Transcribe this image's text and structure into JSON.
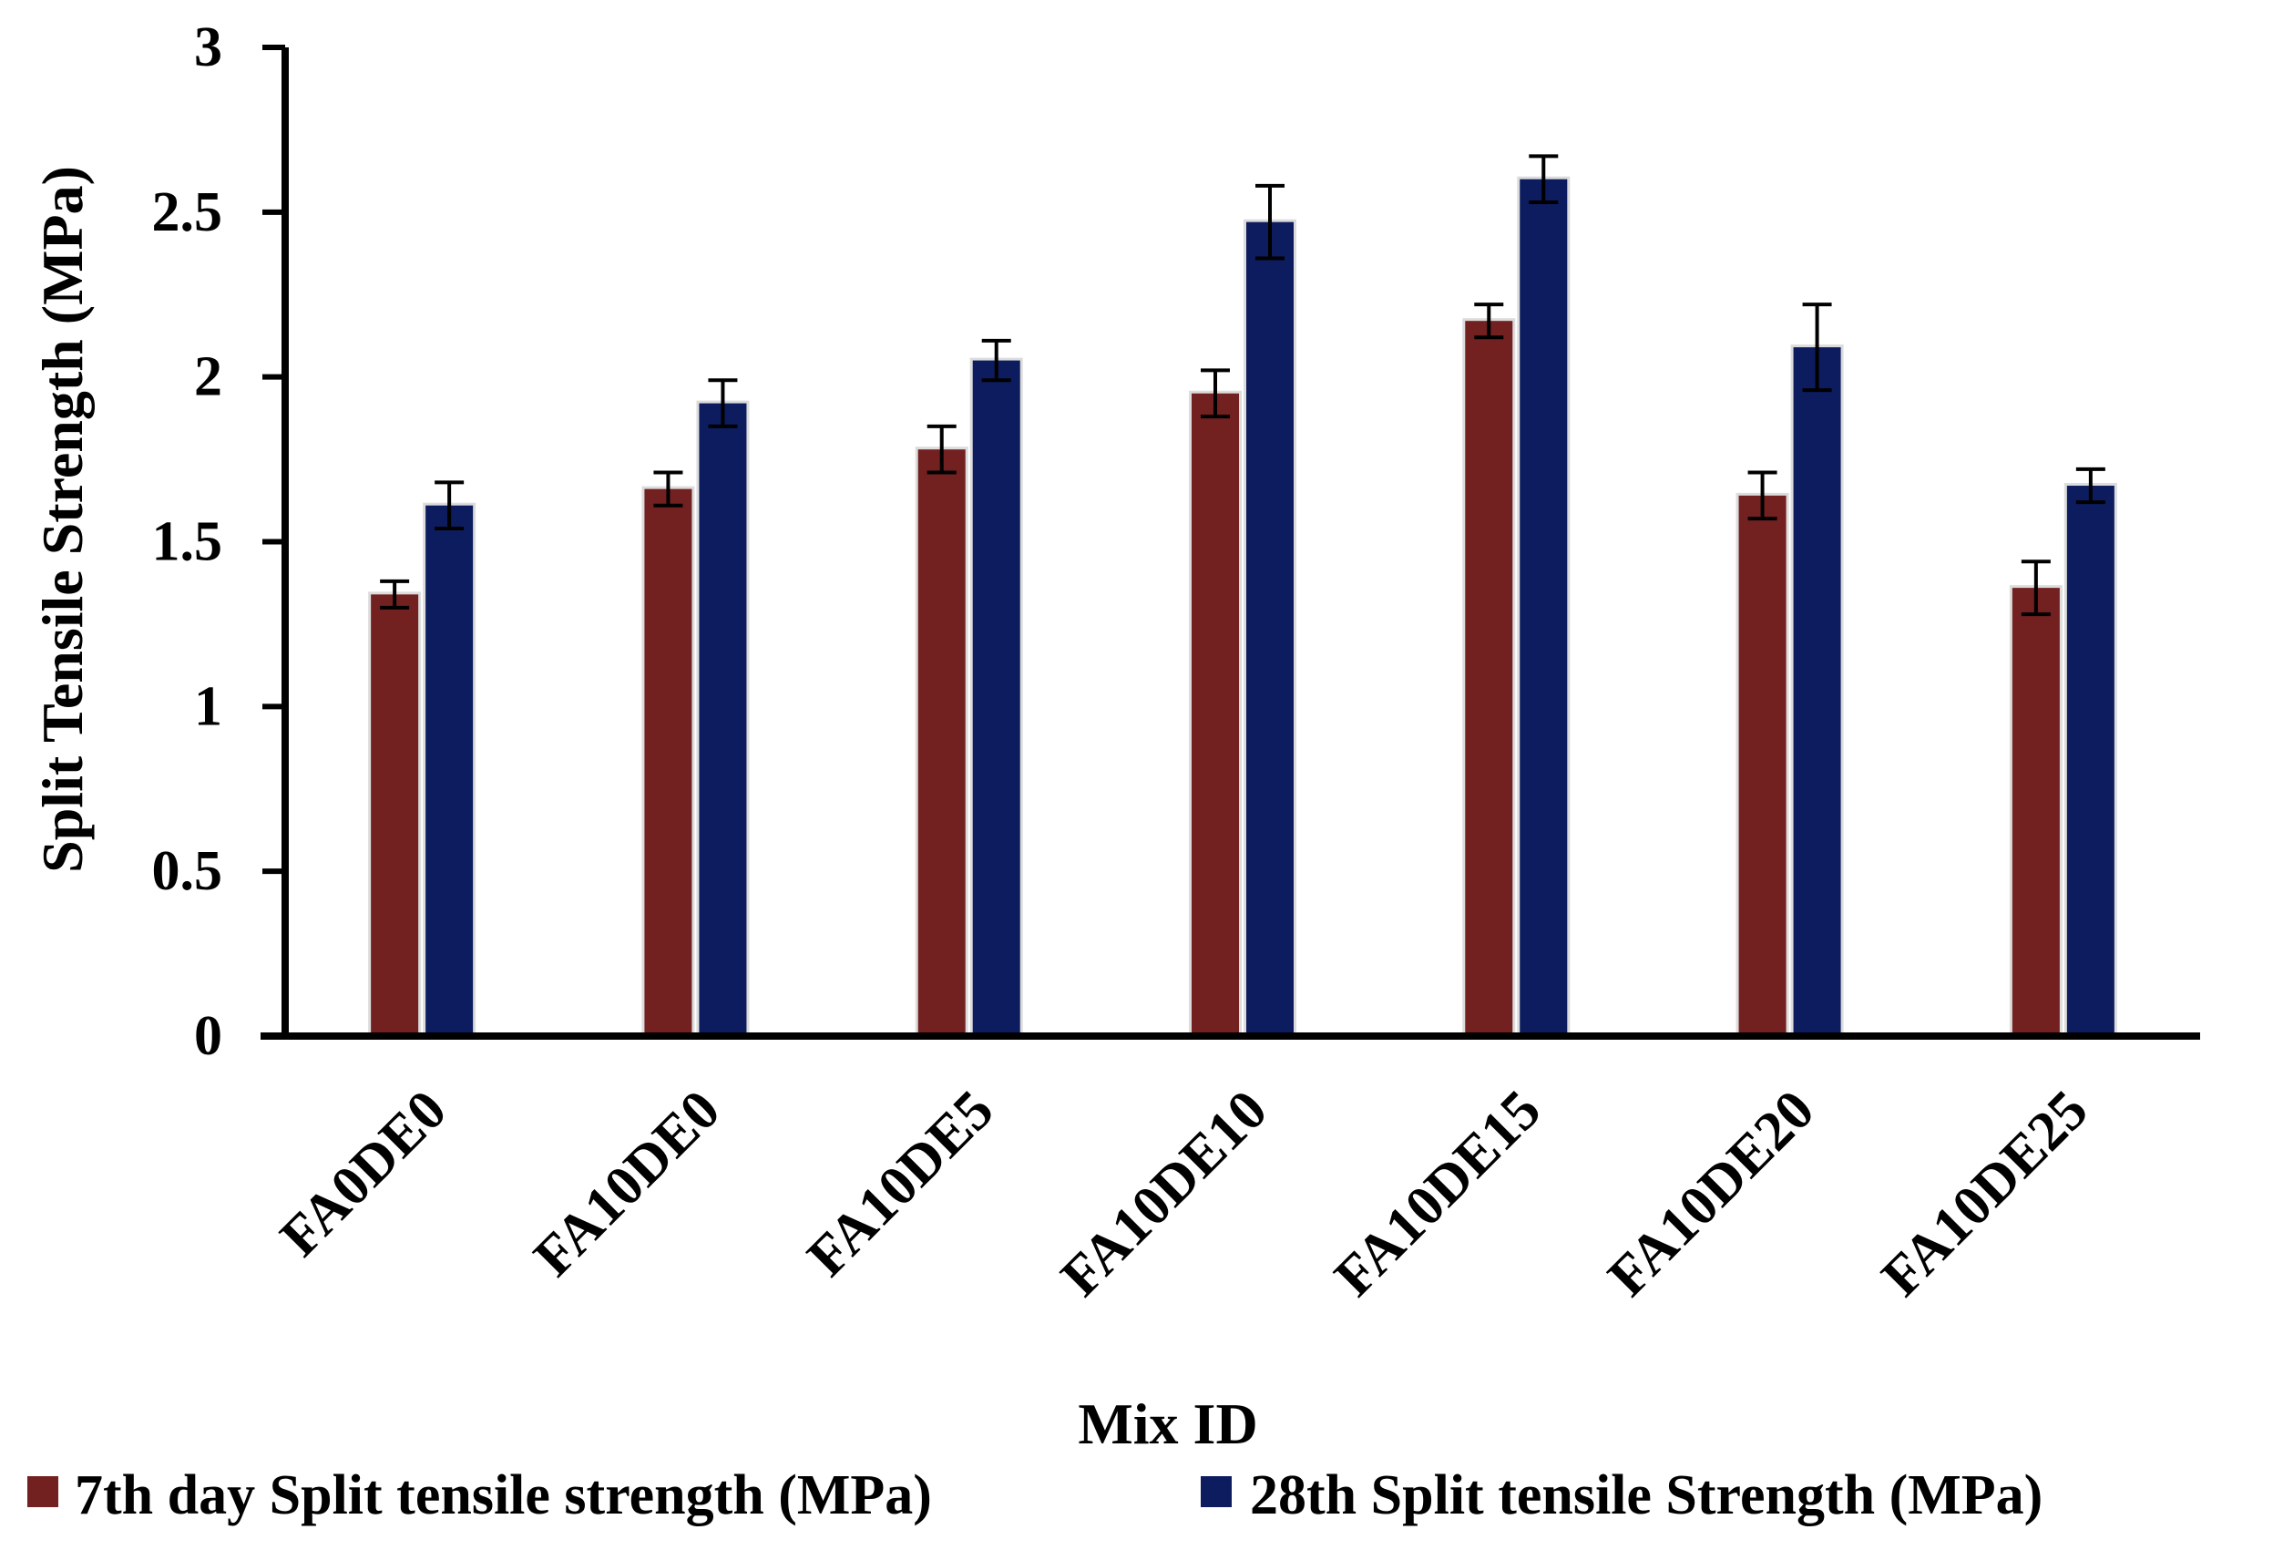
{
  "chart_data": {
    "type": "bar",
    "title": "",
    "xlabel": "Mix ID",
    "ylabel": "Split Tensile Strength (MPa)",
    "ylim": [
      0,
      3
    ],
    "yticks": [
      0,
      0.5,
      1,
      1.5,
      2,
      2.5,
      3
    ],
    "ytick_labels": [
      "0",
      "0.5",
      "1",
      "1.5",
      "2",
      "2.5",
      "3"
    ],
    "grid": false,
    "legend_position": "bottom",
    "categories": [
      "FA0DE0",
      "FA10DE0",
      "FA10DE5",
      "FA10DE10",
      "FA10DE15",
      "FA10DE20",
      "FA10DE25"
    ],
    "series": [
      {
        "name": "7th day Split tensile strength (MPa)",
        "color": "#722020",
        "values": [
          1.34,
          1.66,
          1.78,
          1.95,
          2.17,
          1.64,
          1.36
        ],
        "errors": [
          0.04,
          0.05,
          0.07,
          0.07,
          0.05,
          0.07,
          0.08
        ]
      },
      {
        "name": "28th Split tensile Strength (MPa)",
        "color": "#0c1c5e",
        "values": [
          1.61,
          1.92,
          2.05,
          2.47,
          2.6,
          2.09,
          1.67
        ],
        "errors": [
          0.07,
          0.07,
          0.06,
          0.11,
          0.07,
          0.13,
          0.05
        ]
      }
    ]
  }
}
